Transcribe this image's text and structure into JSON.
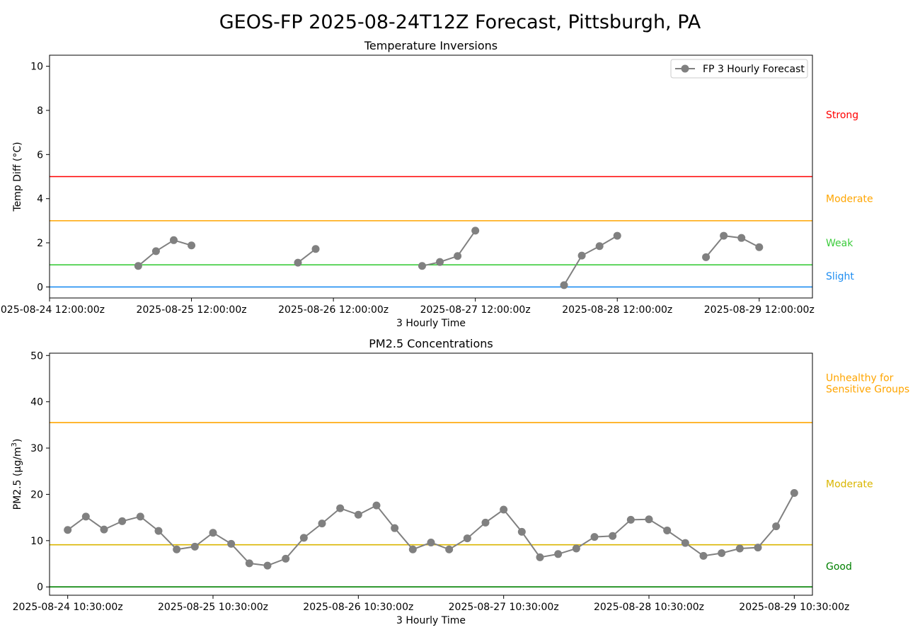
{
  "figure": {
    "title": "GEOS-FP 2025-08-24T12Z Forecast, Pittsburgh, PA",
    "colors": {
      "line": "#808080",
      "axis": "#000000",
      "legend_border": "#cccccc"
    }
  },
  "chart_data": [
    {
      "type": "line",
      "title": "Temperature Inversions",
      "xlabel": "3 Hourly Time",
      "ylabel": "Temp Diff (°C)",
      "ylim": [
        -0.5,
        10.5
      ],
      "xlim_hours": [
        0,
        129
      ],
      "x_ticks": [
        "2025-08-24 12:00:00z",
        "2025-08-25 12:00:00z",
        "2025-08-26 12:00:00z",
        "2025-08-27 12:00:00z",
        "2025-08-28 12:00:00z",
        "2025-08-29 12:00:00z"
      ],
      "x_tick_hours": [
        0,
        24,
        48,
        72,
        96,
        120
      ],
      "y_ticks": [
        0,
        2,
        4,
        6,
        8,
        10
      ],
      "series": [
        {
          "name": "FP 3 Hourly Forecast",
          "color": "#808080",
          "times_hours": [
            15,
            18,
            21,
            24,
            42,
            45,
            63,
            66,
            69,
            72,
            87,
            90,
            93,
            96,
            111,
            114,
            117,
            120
          ],
          "segments": [
            [
              15,
              18,
              21,
              24
            ],
            [
              42,
              45
            ],
            [
              63,
              66,
              69,
              72
            ],
            [
              87,
              90,
              93,
              96
            ],
            [
              111,
              114,
              117,
              120
            ]
          ],
          "values": [
            0.95,
            1.62,
            2.12,
            1.88,
            1.1,
            1.72,
            0.95,
            1.13,
            1.4,
            2.55,
            0.08,
            1.42,
            1.85,
            2.32,
            1.35,
            2.32,
            2.22,
            1.8
          ]
        }
      ],
      "legend": {
        "placement": "top-right"
      },
      "thresholds": [
        {
          "value": 0,
          "color": "#1f8ef1",
          "label": "Slight",
          "label_value": 0.5
        },
        {
          "value": 1,
          "color": "#3ccc3c",
          "label": "Weak",
          "label_value": 2.0
        },
        {
          "value": 3,
          "color": "#ffa500",
          "label": "Moderate",
          "label_value": 4.0
        },
        {
          "value": 5,
          "color": "#ff0000",
          "label": "Strong",
          "label_value": 7.8
        }
      ]
    },
    {
      "type": "line",
      "title": "PM2.5 Concentrations",
      "xlabel": "3 Hourly Time",
      "ylabel": "PM2.5 (µg/m",
      "ylabel_sup": "3",
      "ylabel_close": ")",
      "ylim": [
        -1.8,
        50.5
      ],
      "xlim_hours": [
        -3,
        123
      ],
      "x_ticks": [
        "2025-08-24 10:30:00z",
        "2025-08-25 10:30:00z",
        "2025-08-26 10:30:00z",
        "2025-08-27 10:30:00z",
        "2025-08-28 10:30:00z",
        "2025-08-29 10:30:00z"
      ],
      "x_tick_hours": [
        0,
        24,
        48,
        72,
        96,
        120
      ],
      "y_ticks": [
        0,
        10,
        20,
        30,
        40,
        50
      ],
      "series": [
        {
          "name": "FP 3 Hourly Forecast",
          "color": "#808080",
          "times_hours": [
            0,
            3,
            6,
            9,
            12,
            15,
            18,
            21,
            24,
            27,
            30,
            33,
            36,
            39,
            42,
            45,
            48,
            51,
            54,
            57,
            60,
            63,
            66,
            69,
            72,
            75,
            78,
            81,
            84,
            87,
            90,
            93,
            96,
            99,
            102,
            105,
            108,
            111,
            114,
            117,
            120
          ],
          "values": [
            12.3,
            15.2,
            12.4,
            14.2,
            15.2,
            12.1,
            8.1,
            8.7,
            11.7,
            9.3,
            5.1,
            4.6,
            6.1,
            10.6,
            13.7,
            17.0,
            15.6,
            17.6,
            12.7,
            8.1,
            9.6,
            8.1,
            10.5,
            13.9,
            16.7,
            11.9,
            6.4,
            7.1,
            8.3,
            10.8,
            11.0,
            14.5,
            14.6,
            12.2,
            9.5,
            6.7,
            7.3,
            8.3,
            8.5,
            13.1,
            20.3
          ]
        }
      ],
      "thresholds": [
        {
          "value": 0,
          "color": "#008000",
          "label": "Good",
          "label_value": 4.5
        },
        {
          "value": 9.1,
          "color": "#dab600",
          "label": "Moderate",
          "label_value": 22.3
        },
        {
          "value": 35.5,
          "color": "#ffa500",
          "label": "Unhealthy for",
          "label2": "Sensitive Groups",
          "label_value": 44.0
        }
      ]
    }
  ]
}
